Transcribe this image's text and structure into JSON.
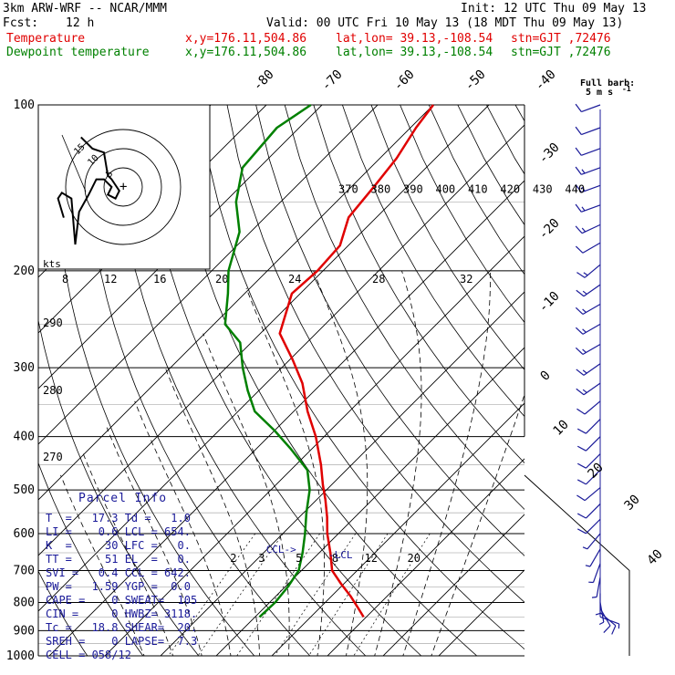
{
  "header": {
    "model": "3km ARW-WRF -- NCAR/MMM",
    "init": "Init: 12 UTC Thu 09 May 13",
    "fcst_label": "Fcst:",
    "fcst_value": "12 h",
    "valid": "Valid: 00 UTC Fri 10 May 13 (18 MDT Thu 09 May 13)",
    "temp_label": "Temperature",
    "dew_label": "Dewpoint temperature",
    "xy": "x,y=176.11,504.86",
    "latlon": "lat,lon= 39.13,-108.54",
    "stn": "stn=GJT ,72476",
    "temp_color": "#e00000",
    "dew_color": "#008000"
  },
  "chart_data": {
    "type": "line",
    "subtype": "skew-T log-P sounding",
    "pressure_ticks": [
      100,
      200,
      300,
      400,
      500,
      600,
      700,
      800,
      900,
      1000
    ],
    "isotherm_labels": [
      -80,
      -70,
      -60,
      -50,
      -40,
      -30,
      -20,
      -10,
      0,
      10,
      20,
      30,
      40
    ],
    "theta_labels": [
      370,
      380,
      390,
      400,
      410,
      420,
      430,
      440
    ],
    "left_theta_labels": [
      290,
      280,
      270
    ],
    "mixing_ratio_labels": [
      "2",
      "3",
      "5",
      "8",
      "12",
      "20"
    ],
    "hodograph": {
      "unit_label": "kts",
      "speed_labels": [
        "8",
        "12",
        "16",
        "20",
        "24",
        "28",
        "32"
      ],
      "ring_labels": [
        "5",
        "10",
        "15"
      ],
      "trace_uv": [
        [
          -15.5,
          -8
        ],
        [
          -17,
          -3
        ],
        [
          -16,
          -1.5
        ],
        [
          -13.5,
          -3
        ],
        [
          -12.5,
          -15
        ],
        [
          -11.5,
          -6.5
        ],
        [
          -9,
          -2
        ],
        [
          -7,
          2
        ],
        [
          -5,
          2
        ],
        [
          -3,
          0
        ],
        [
          -4,
          -2
        ],
        [
          -2,
          -3
        ],
        [
          -1,
          -1
        ],
        [
          -3,
          2
        ],
        [
          -4,
          3
        ],
        [
          -5,
          9
        ],
        [
          -8,
          10
        ],
        [
          -11,
          13
        ]
      ]
    },
    "wind_legend": {
      "label": "Full barb:",
      "value": "5 m s",
      "superscript": "-1"
    },
    "series": [
      {
        "name": "Temperature",
        "color": "#e00000",
        "points": [
          [
            850,
            19.5
          ],
          [
            820,
            17
          ],
          [
            780,
            13.5
          ],
          [
            740,
            9.5
          ],
          [
            700,
            5.5
          ],
          [
            650,
            2
          ],
          [
            600,
            -2
          ],
          [
            560,
            -5
          ],
          [
            520,
            -8.5
          ],
          [
            490,
            -11.5
          ],
          [
            450,
            -15.5
          ],
          [
            400,
            -21.5
          ],
          [
            360,
            -27.5
          ],
          [
            320,
            -33.5
          ],
          [
            290,
            -39.5
          ],
          [
            260,
            -46.5
          ],
          [
            220,
            -51.5
          ],
          [
            200,
            -51
          ],
          [
            180,
            -51.5
          ],
          [
            160,
            -55
          ],
          [
            140,
            -56
          ],
          [
            125,
            -57
          ],
          [
            110,
            -59
          ],
          [
            100,
            -60
          ]
        ]
      },
      {
        "name": "Dewpoint temperature",
        "color": "#008000",
        "points": [
          [
            850,
            0.8
          ],
          [
            800,
            1
          ],
          [
            750,
            0.5
          ],
          [
            700,
            -0.5
          ],
          [
            650,
            -3
          ],
          [
            600,
            -6
          ],
          [
            550,
            -9.5
          ],
          [
            500,
            -13
          ],
          [
            460,
            -17
          ],
          [
            420,
            -24
          ],
          [
            390,
            -30
          ],
          [
            360,
            -37
          ],
          [
            330,
            -42
          ],
          [
            300,
            -47
          ],
          [
            270,
            -52
          ],
          [
            250,
            -58
          ],
          [
            220,
            -63
          ],
          [
            200,
            -67
          ],
          [
            170,
            -72
          ],
          [
            150,
            -78
          ],
          [
            130,
            -83
          ],
          [
            110,
            -84
          ],
          [
            100,
            -82
          ]
        ]
      }
    ],
    "wind_barbs": [
      {
        "p": 100,
        "spd": 10,
        "dir": 250
      },
      {
        "p": 110,
        "spd": 10,
        "dir": 250
      },
      {
        "p": 120,
        "spd": 10,
        "dir": 250
      },
      {
        "p": 130,
        "spd": 15,
        "dir": 250
      },
      {
        "p": 140,
        "spd": 15,
        "dir": 250
      },
      {
        "p": 152,
        "spd": 15,
        "dir": 250
      },
      {
        "p": 165,
        "spd": 15,
        "dir": 245
      },
      {
        "p": 178,
        "spd": 10,
        "dir": 240
      },
      {
        "p": 195,
        "spd": 15,
        "dir": 230
      },
      {
        "p": 212,
        "spd": 15,
        "dir": 235
      },
      {
        "p": 230,
        "spd": 15,
        "dir": 240
      },
      {
        "p": 250,
        "spd": 15,
        "dir": 240
      },
      {
        "p": 272,
        "spd": 15,
        "dir": 240
      },
      {
        "p": 295,
        "spd": 15,
        "dir": 235
      },
      {
        "p": 320,
        "spd": 15,
        "dir": 235
      },
      {
        "p": 345,
        "spd": 10,
        "dir": 230
      },
      {
        "p": 372,
        "spd": 10,
        "dir": 225
      },
      {
        "p": 400,
        "spd": 10,
        "dir": 225
      },
      {
        "p": 430,
        "spd": 10,
        "dir": 225
      },
      {
        "p": 460,
        "spd": 10,
        "dir": 225
      },
      {
        "p": 495,
        "spd": 10,
        "dir": 230
      },
      {
        "p": 530,
        "spd": 10,
        "dir": 225
      },
      {
        "p": 565,
        "spd": 10,
        "dir": 225
      },
      {
        "p": 600,
        "spd": 5,
        "dir": 220
      },
      {
        "p": 640,
        "spd": 5,
        "dir": 210
      },
      {
        "p": 680,
        "spd": 5,
        "dir": 200
      },
      {
        "p": 720,
        "spd": 5,
        "dir": 190
      },
      {
        "p": 770,
        "spd": 5,
        "dir": 180
      },
      {
        "p": 800,
        "spd": 5,
        "dir": 170
      },
      {
        "p": 820,
        "spd": 10,
        "dir": 150
      },
      {
        "p": 835,
        "spd": 10,
        "dir": 130
      },
      {
        "p": 850,
        "spd": 5,
        "dir": 110
      }
    ],
    "annotations": {
      "ccl": "CCL->",
      "lcl": "-LCL",
      "ccl_p": 650,
      "ccl_t": -3,
      "lcl_p": 660,
      "lcl_t": 0
    }
  },
  "parcel_info": {
    "title": "Parcel Info",
    "rows": [
      "T  =   17.3 Td =   1.0",
      "LI =    0.6 LCL = 654.",
      "K  =     30 LFC =   0.",
      "TT =     51 EL  =   0.",
      "SVI =   0.4 CCL = 642.",
      "PW =   1.59 YGP =  0.0",
      "CAPE =    0 SWEAT=  105",
      "CIN =     0 HWBZ= 3118.",
      "Tc =   18.8 SHEAR=  20.",
      "SREH =    0 LAPSE=  7.3",
      "CELL = 058/12"
    ]
  }
}
